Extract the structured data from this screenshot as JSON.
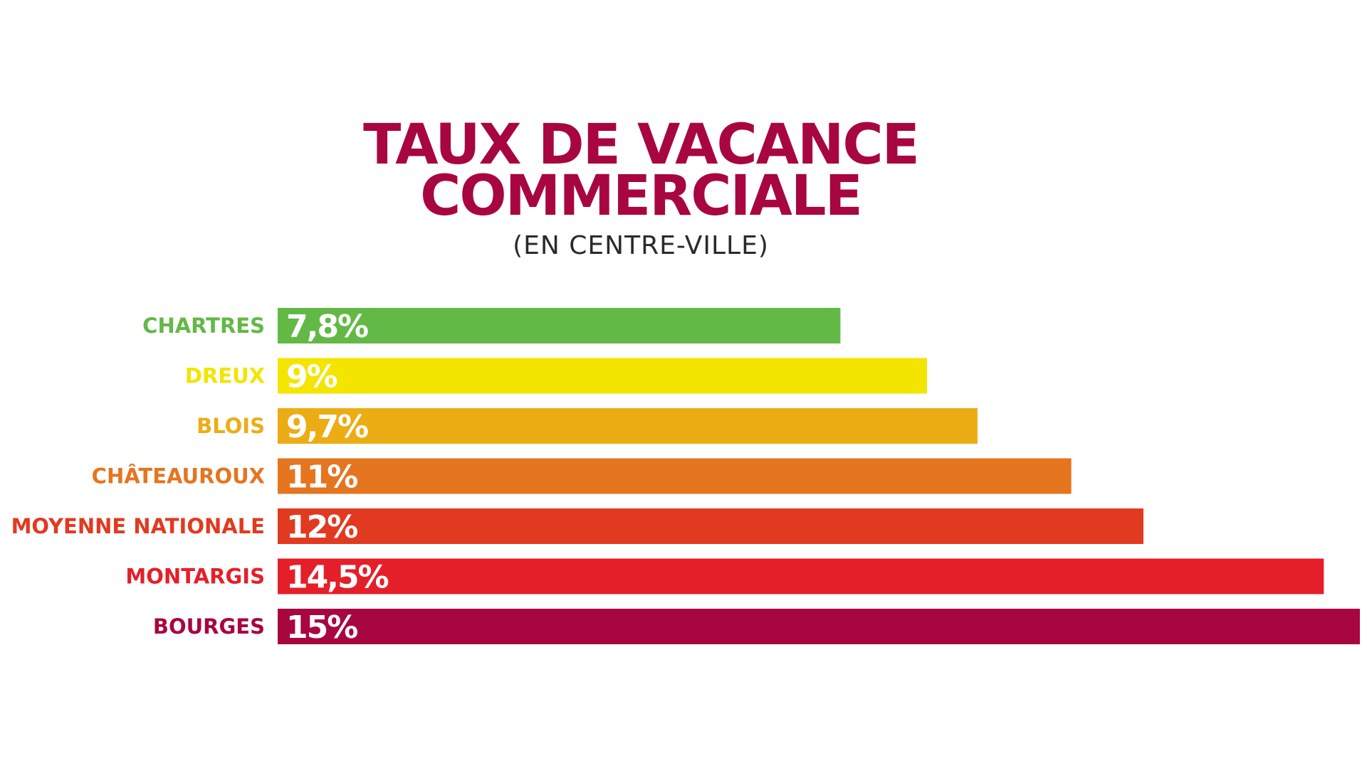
{
  "header": {
    "title_line1": "TAUX DE VACANCE",
    "title_line2": "COMMERCIALE",
    "subtitle": "(EN CENTRE-VILLE)"
  },
  "chart_data": {
    "type": "bar",
    "orientation": "horizontal",
    "title": "TAUX DE VACANCE COMMERCIALE",
    "subtitle": "(EN CENTRE-VILLE)",
    "unit": "%",
    "xlim": [
      0,
      15
    ],
    "grid": false,
    "legend": "none",
    "categories": [
      "CHARTRES",
      "DREUX",
      "BLOIS",
      "CHÂTEAUROUX",
      "MOYENNE NATIONALE",
      "MONTARGIS",
      "BOURGES"
    ],
    "values": [
      7.8,
      9,
      9.7,
      11,
      12,
      14.5,
      15
    ],
    "value_labels": [
      "7,8%",
      "9%",
      "9,7%",
      "11%",
      "12%",
      "14,5%",
      "15%"
    ],
    "colors": [
      "#62b946",
      "#f3e500",
      "#ecac14",
      "#e5751f",
      "#e13a20",
      "#e41f2a",
      "#a8063f"
    ]
  }
}
